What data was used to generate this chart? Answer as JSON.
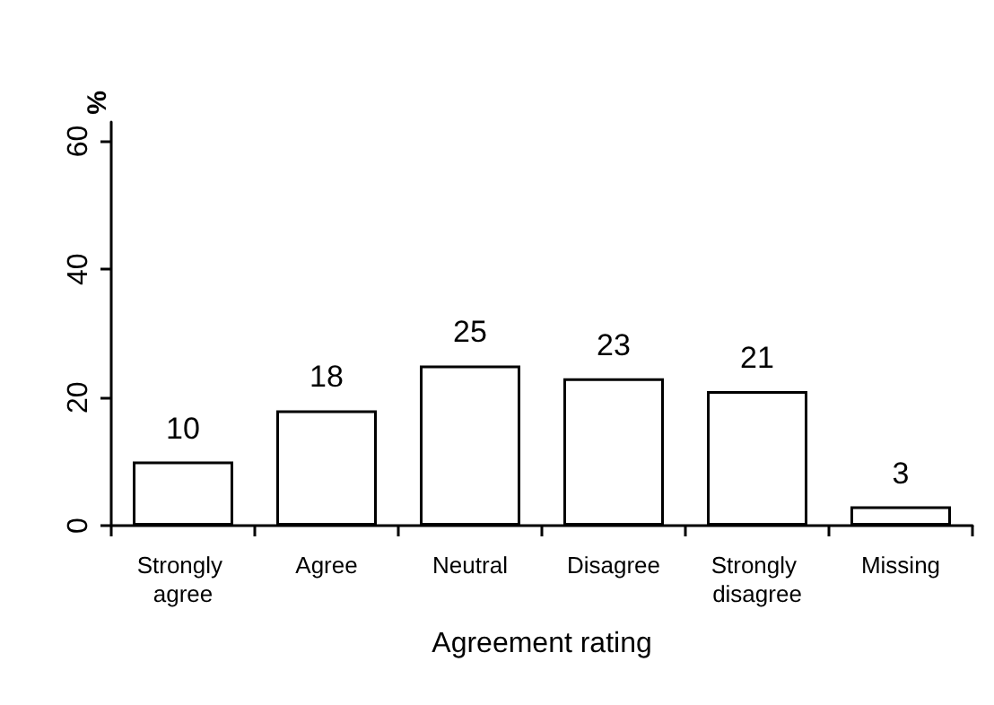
{
  "chart_data": {
    "type": "bar",
    "xlabel": "Agreement rating",
    "ylabel": "%",
    "categories": [
      "Strongly agree",
      "Agree",
      "Neutral",
      "Disagree",
      "Strongly disagree",
      "Missing"
    ],
    "values": [
      10,
      18,
      25,
      23,
      21,
      3
    ],
    "color": "#ffffff",
    "ylim": [
      0,
      63
    ],
    "yticks": [
      0,
      20,
      40,
      60
    ],
    "data_labels": true
  }
}
